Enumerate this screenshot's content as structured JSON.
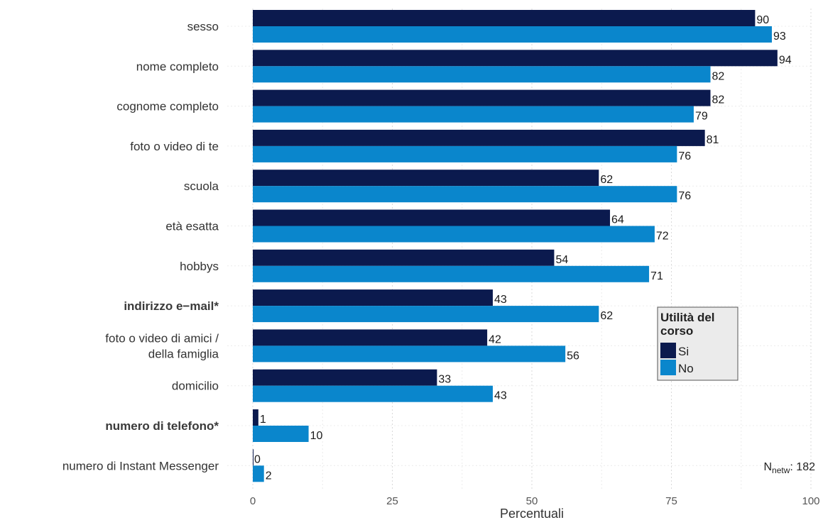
{
  "chart_data": {
    "type": "bar",
    "orientation": "horizontal",
    "categories": [
      {
        "label": "sesso",
        "bold": false
      },
      {
        "label": "nome completo",
        "bold": false
      },
      {
        "label": "cognome completo",
        "bold": false
      },
      {
        "label": "foto o video di te",
        "bold": false
      },
      {
        "label": "scuola",
        "bold": false
      },
      {
        "label": "età esatta",
        "bold": false
      },
      {
        "label": "hobbys",
        "bold": false
      },
      {
        "label": "indirizzo e−mail*",
        "bold": true
      },
      {
        "label": "foto o video di amici / della famiglia",
        "bold": false
      },
      {
        "label": "domicilio",
        "bold": false
      },
      {
        "label": "numero di telefono*",
        "bold": true
      },
      {
        "label": "numero di Instant Messenger",
        "bold": false
      }
    ],
    "series": [
      {
        "name": "Si",
        "color": "#0b1a4e",
        "values": [
          90,
          94,
          82,
          81,
          62,
          64,
          54,
          43,
          42,
          33,
          1,
          0
        ]
      },
      {
        "name": "No",
        "color": "#0a86cc",
        "values": [
          93,
          82,
          79,
          76,
          76,
          72,
          71,
          62,
          56,
          43,
          10,
          2
        ]
      }
    ],
    "xlabel": "Percentuali",
    "xlim": [
      0,
      100
    ],
    "xticks": [
      0,
      25,
      50,
      75,
      100
    ],
    "grid": true,
    "legend": {
      "title": "Utilità del corso",
      "position": "right"
    },
    "annotation": {
      "prefix": "N",
      "subscript": "netw",
      "suffix": ": 182"
    }
  }
}
